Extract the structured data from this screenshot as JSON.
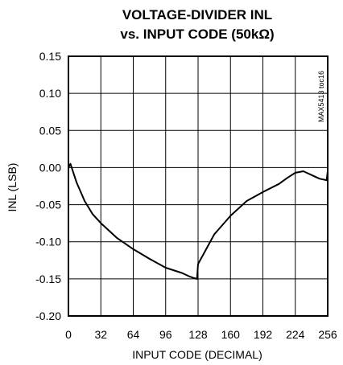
{
  "chart_data": {
    "type": "line",
    "title_line1": "VOLTAGE-DIVIDER INL",
    "title_line2": "vs. INPUT CODE (50kΩ)",
    "xlabel": "INPUT CODE (DECIMAL)",
    "ylabel": "INL (LSB)",
    "figure_id": "MAX5413 toc16",
    "xlim": [
      0,
      256
    ],
    "ylim": [
      -0.2,
      0.15
    ],
    "x_ticks": [
      0,
      32,
      64,
      96,
      128,
      160,
      192,
      224,
      256
    ],
    "x_tick_labels": [
      "0",
      "32",
      "64",
      "96",
      "128",
      "160",
      "192",
      "224",
      "256"
    ],
    "y_ticks": [
      0.15,
      0.1,
      0.05,
      0.0,
      -0.05,
      -0.1,
      -0.15,
      -0.2
    ],
    "y_tick_labels": [
      "0.15",
      "0.10",
      "0.05",
      "0.00",
      "-0.05",
      "-0.10",
      "-0.15",
      "-0.20"
    ],
    "grid": true,
    "series": [
      {
        "x": [
          0,
          2,
          8,
          16,
          24,
          32,
          48,
          64,
          80,
          96,
          112,
          120,
          124,
          127,
          128,
          136,
          144,
          160,
          176,
          192,
          208,
          216,
          224,
          232,
          240,
          248,
          255,
          256
        ],
        "y": [
          0.0,
          0.005,
          -0.02,
          -0.045,
          -0.063,
          -0.075,
          -0.095,
          -0.11,
          -0.123,
          -0.135,
          -0.142,
          -0.147,
          -0.149,
          -0.15,
          -0.13,
          -0.11,
          -0.09,
          -0.065,
          -0.045,
          -0.033,
          -0.022,
          -0.014,
          -0.007,
          -0.005,
          -0.01,
          -0.015,
          -0.017,
          -0.005
        ]
      }
    ]
  }
}
